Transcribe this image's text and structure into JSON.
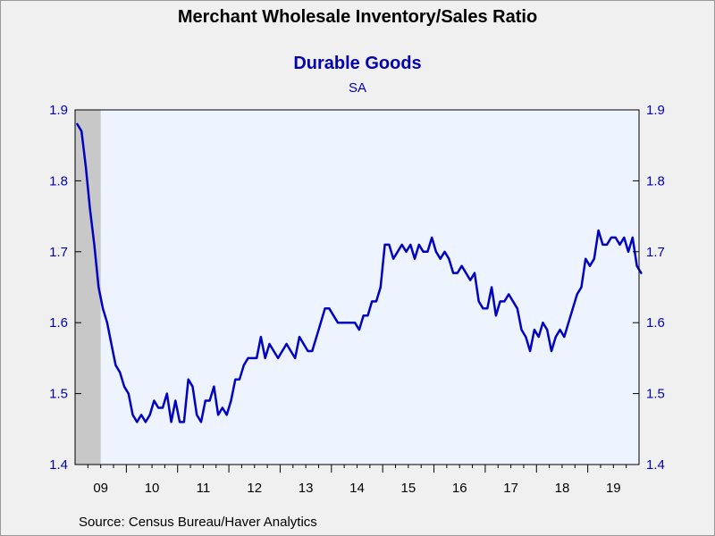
{
  "chart_data": {
    "type": "line",
    "title": "Merchant Wholesale Inventory/Sales Ratio",
    "subtitle": "Durable Goods",
    "note": "SA",
    "source": "Source:  Census Bureau/Haver Analytics",
    "ylim": [
      1.4,
      1.9
    ],
    "yticks": [
      "1.4",
      "1.5",
      "1.6",
      "1.7",
      "1.8",
      "1.9"
    ],
    "xlim": [
      "2009-01",
      "2019-12"
    ],
    "xtick_labels": [
      "09",
      "10",
      "11",
      "12",
      "13",
      "14",
      "15",
      "16",
      "17",
      "18",
      "19"
    ],
    "recession_shading": {
      "start": "2009-01",
      "end": "2009-06",
      "color": "#c8c8c8"
    },
    "plot_background": "#eef4ff",
    "line_color": "#0000c0",
    "grid": false,
    "series": [
      {
        "start": "2009-01",
        "frequency": "monthly",
        "values": [
          1.88,
          1.87,
          1.82,
          1.76,
          1.71,
          1.65,
          1.62,
          1.6,
          1.57,
          1.54,
          1.53,
          1.51,
          1.5,
          1.47,
          1.46,
          1.47,
          1.46,
          1.47,
          1.49,
          1.48,
          1.48,
          1.5,
          1.46,
          1.49,
          1.46,
          1.46,
          1.52,
          1.51,
          1.47,
          1.46,
          1.49,
          1.49,
          1.51,
          1.47,
          1.48,
          1.47,
          1.49,
          1.52,
          1.52,
          1.54,
          1.55,
          1.55,
          1.55,
          1.58,
          1.55,
          1.57,
          1.56,
          1.55,
          1.56,
          1.57,
          1.56,
          1.55,
          1.58,
          1.57,
          1.56,
          1.56,
          1.58,
          1.6,
          1.62,
          1.62,
          1.61,
          1.6,
          1.6,
          1.6,
          1.6,
          1.6,
          1.59,
          1.61,
          1.61,
          1.63,
          1.63,
          1.65,
          1.71,
          1.71,
          1.69,
          1.7,
          1.71,
          1.7,
          1.71,
          1.69,
          1.71,
          1.7,
          1.7,
          1.72,
          1.7,
          1.69,
          1.7,
          1.69,
          1.67,
          1.67,
          1.68,
          1.67,
          1.66,
          1.67,
          1.63,
          1.62,
          1.62,
          1.65,
          1.61,
          1.63,
          1.63,
          1.64,
          1.63,
          1.62,
          1.59,
          1.58,
          1.56,
          1.59,
          1.58,
          1.6,
          1.59,
          1.56,
          1.58,
          1.59,
          1.58,
          1.6,
          1.62,
          1.64,
          1.65,
          1.69,
          1.68,
          1.69,
          1.73,
          1.71,
          1.71,
          1.72,
          1.72,
          1.71,
          1.72,
          1.7,
          1.72,
          1.68,
          1.67
        ]
      }
    ]
  }
}
